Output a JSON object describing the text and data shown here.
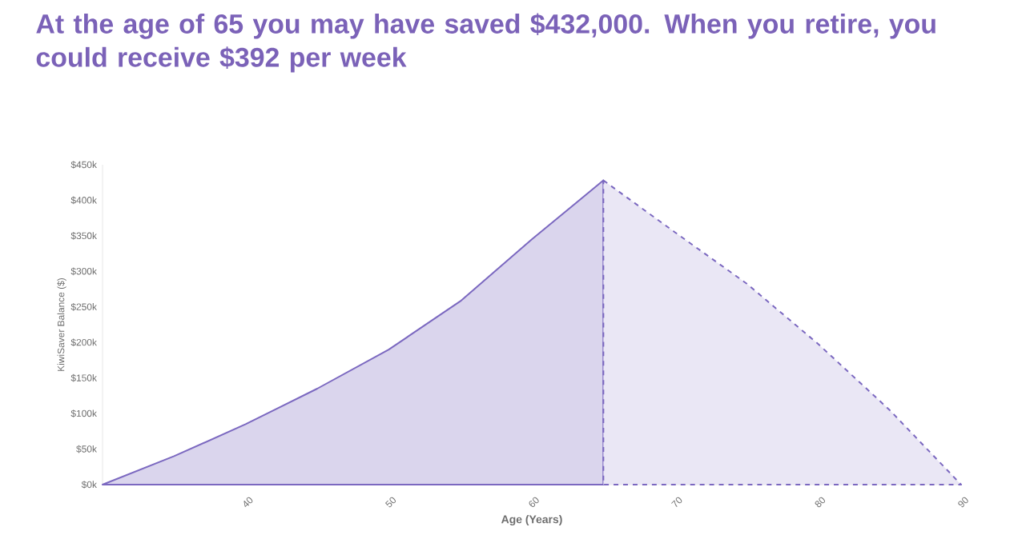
{
  "chart_data": {
    "type": "area",
    "title": "At the age of 65 you may have saved $432,000. When you retire, you could receive $392 per week",
    "xlabel": "Age (Years)",
    "ylabel": "KiwiSaver Balance ($)",
    "series": [
      {
        "x": [
          30,
          35,
          40,
          45,
          50,
          55,
          60,
          65
        ],
        "values": [
          0,
          40000,
          85000,
          135000,
          190000,
          258000,
          345000,
          428000
        ],
        "color": "#7b68c0",
        "line_style": "solid"
      },
      {
        "x": [
          65,
          70,
          75,
          80,
          85,
          90
        ],
        "values": [
          428000,
          355000,
          283000,
          198000,
          105000,
          0
        ],
        "color": "#7b68c0",
        "line_style": "dashed"
      }
    ],
    "xlim": [
      30,
      90
    ],
    "xticks": [
      40,
      50,
      60,
      70,
      80,
      90
    ],
    "ylim": [
      0,
      450000
    ],
    "yticks": [
      {
        "value": 0,
        "label": "$0k"
      },
      {
        "value": 50000,
        "label": "$50k"
      },
      {
        "value": 100000,
        "label": "$100k"
      },
      {
        "value": 150000,
        "label": "$150k"
      },
      {
        "value": 200000,
        "label": "$200k"
      },
      {
        "value": 250000,
        "label": "$250k"
      },
      {
        "value": 300000,
        "label": "$300k"
      },
      {
        "value": 350000,
        "label": "$350k"
      },
      {
        "value": 400000,
        "label": "$400k"
      },
      {
        "value": 450000,
        "label": "$450k"
      }
    ],
    "grid": false
  }
}
